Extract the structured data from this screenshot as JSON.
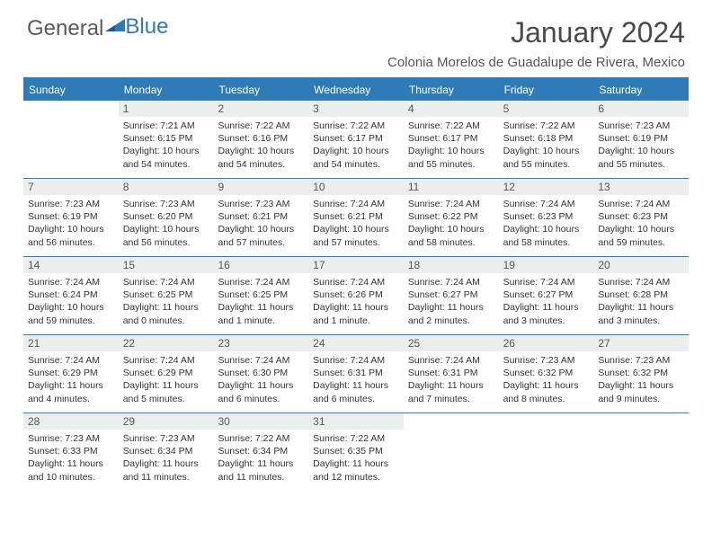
{
  "logo": {
    "text_a": "General",
    "text_b": "Blue"
  },
  "title": "January 2024",
  "location": "Colonia Morelos de Guadalupe de Rivera, Mexico",
  "colors": {
    "brand_blue": "#2e7bb8",
    "header_bg": "#2e7bb8",
    "daynum_bg": "#eceded",
    "text_gray": "#4a4a4a",
    "body_text": "#333333"
  },
  "day_names": [
    "Sunday",
    "Monday",
    "Tuesday",
    "Wednesday",
    "Thursday",
    "Friday",
    "Saturday"
  ],
  "weeks": [
    [
      {
        "n": "",
        "sr": "",
        "ss": "",
        "dl1": "",
        "dl2": ""
      },
      {
        "n": "1",
        "sr": "Sunrise: 7:21 AM",
        "ss": "Sunset: 6:15 PM",
        "dl1": "Daylight: 10 hours",
        "dl2": "and 54 minutes."
      },
      {
        "n": "2",
        "sr": "Sunrise: 7:22 AM",
        "ss": "Sunset: 6:16 PM",
        "dl1": "Daylight: 10 hours",
        "dl2": "and 54 minutes."
      },
      {
        "n": "3",
        "sr": "Sunrise: 7:22 AM",
        "ss": "Sunset: 6:17 PM",
        "dl1": "Daylight: 10 hours",
        "dl2": "and 54 minutes."
      },
      {
        "n": "4",
        "sr": "Sunrise: 7:22 AM",
        "ss": "Sunset: 6:17 PM",
        "dl1": "Daylight: 10 hours",
        "dl2": "and 55 minutes."
      },
      {
        "n": "5",
        "sr": "Sunrise: 7:22 AM",
        "ss": "Sunset: 6:18 PM",
        "dl1": "Daylight: 10 hours",
        "dl2": "and 55 minutes."
      },
      {
        "n": "6",
        "sr": "Sunrise: 7:23 AM",
        "ss": "Sunset: 6:19 PM",
        "dl1": "Daylight: 10 hours",
        "dl2": "and 55 minutes."
      }
    ],
    [
      {
        "n": "7",
        "sr": "Sunrise: 7:23 AM",
        "ss": "Sunset: 6:19 PM",
        "dl1": "Daylight: 10 hours",
        "dl2": "and 56 minutes."
      },
      {
        "n": "8",
        "sr": "Sunrise: 7:23 AM",
        "ss": "Sunset: 6:20 PM",
        "dl1": "Daylight: 10 hours",
        "dl2": "and 56 minutes."
      },
      {
        "n": "9",
        "sr": "Sunrise: 7:23 AM",
        "ss": "Sunset: 6:21 PM",
        "dl1": "Daylight: 10 hours",
        "dl2": "and 57 minutes."
      },
      {
        "n": "10",
        "sr": "Sunrise: 7:24 AM",
        "ss": "Sunset: 6:21 PM",
        "dl1": "Daylight: 10 hours",
        "dl2": "and 57 minutes."
      },
      {
        "n": "11",
        "sr": "Sunrise: 7:24 AM",
        "ss": "Sunset: 6:22 PM",
        "dl1": "Daylight: 10 hours",
        "dl2": "and 58 minutes."
      },
      {
        "n": "12",
        "sr": "Sunrise: 7:24 AM",
        "ss": "Sunset: 6:23 PM",
        "dl1": "Daylight: 10 hours",
        "dl2": "and 58 minutes."
      },
      {
        "n": "13",
        "sr": "Sunrise: 7:24 AM",
        "ss": "Sunset: 6:23 PM",
        "dl1": "Daylight: 10 hours",
        "dl2": "and 59 minutes."
      }
    ],
    [
      {
        "n": "14",
        "sr": "Sunrise: 7:24 AM",
        "ss": "Sunset: 6:24 PM",
        "dl1": "Daylight: 10 hours",
        "dl2": "and 59 minutes."
      },
      {
        "n": "15",
        "sr": "Sunrise: 7:24 AM",
        "ss": "Sunset: 6:25 PM",
        "dl1": "Daylight: 11 hours",
        "dl2": "and 0 minutes."
      },
      {
        "n": "16",
        "sr": "Sunrise: 7:24 AM",
        "ss": "Sunset: 6:25 PM",
        "dl1": "Daylight: 11 hours",
        "dl2": "and 1 minute."
      },
      {
        "n": "17",
        "sr": "Sunrise: 7:24 AM",
        "ss": "Sunset: 6:26 PM",
        "dl1": "Daylight: 11 hours",
        "dl2": "and 1 minute."
      },
      {
        "n": "18",
        "sr": "Sunrise: 7:24 AM",
        "ss": "Sunset: 6:27 PM",
        "dl1": "Daylight: 11 hours",
        "dl2": "and 2 minutes."
      },
      {
        "n": "19",
        "sr": "Sunrise: 7:24 AM",
        "ss": "Sunset: 6:27 PM",
        "dl1": "Daylight: 11 hours",
        "dl2": "and 3 minutes."
      },
      {
        "n": "20",
        "sr": "Sunrise: 7:24 AM",
        "ss": "Sunset: 6:28 PM",
        "dl1": "Daylight: 11 hours",
        "dl2": "and 3 minutes."
      }
    ],
    [
      {
        "n": "21",
        "sr": "Sunrise: 7:24 AM",
        "ss": "Sunset: 6:29 PM",
        "dl1": "Daylight: 11 hours",
        "dl2": "and 4 minutes."
      },
      {
        "n": "22",
        "sr": "Sunrise: 7:24 AM",
        "ss": "Sunset: 6:29 PM",
        "dl1": "Daylight: 11 hours",
        "dl2": "and 5 minutes."
      },
      {
        "n": "23",
        "sr": "Sunrise: 7:24 AM",
        "ss": "Sunset: 6:30 PM",
        "dl1": "Daylight: 11 hours",
        "dl2": "and 6 minutes."
      },
      {
        "n": "24",
        "sr": "Sunrise: 7:24 AM",
        "ss": "Sunset: 6:31 PM",
        "dl1": "Daylight: 11 hours",
        "dl2": "and 6 minutes."
      },
      {
        "n": "25",
        "sr": "Sunrise: 7:24 AM",
        "ss": "Sunset: 6:31 PM",
        "dl1": "Daylight: 11 hours",
        "dl2": "and 7 minutes."
      },
      {
        "n": "26",
        "sr": "Sunrise: 7:23 AM",
        "ss": "Sunset: 6:32 PM",
        "dl1": "Daylight: 11 hours",
        "dl2": "and 8 minutes."
      },
      {
        "n": "27",
        "sr": "Sunrise: 7:23 AM",
        "ss": "Sunset: 6:32 PM",
        "dl1": "Daylight: 11 hours",
        "dl2": "and 9 minutes."
      }
    ],
    [
      {
        "n": "28",
        "sr": "Sunrise: 7:23 AM",
        "ss": "Sunset: 6:33 PM",
        "dl1": "Daylight: 11 hours",
        "dl2": "and 10 minutes."
      },
      {
        "n": "29",
        "sr": "Sunrise: 7:23 AM",
        "ss": "Sunset: 6:34 PM",
        "dl1": "Daylight: 11 hours",
        "dl2": "and 11 minutes."
      },
      {
        "n": "30",
        "sr": "Sunrise: 7:22 AM",
        "ss": "Sunset: 6:34 PM",
        "dl1": "Daylight: 11 hours",
        "dl2": "and 11 minutes."
      },
      {
        "n": "31",
        "sr": "Sunrise: 7:22 AM",
        "ss": "Sunset: 6:35 PM",
        "dl1": "Daylight: 11 hours",
        "dl2": "and 12 minutes."
      },
      {
        "n": "",
        "sr": "",
        "ss": "",
        "dl1": "",
        "dl2": ""
      },
      {
        "n": "",
        "sr": "",
        "ss": "",
        "dl1": "",
        "dl2": ""
      },
      {
        "n": "",
        "sr": "",
        "ss": "",
        "dl1": "",
        "dl2": ""
      }
    ]
  ]
}
